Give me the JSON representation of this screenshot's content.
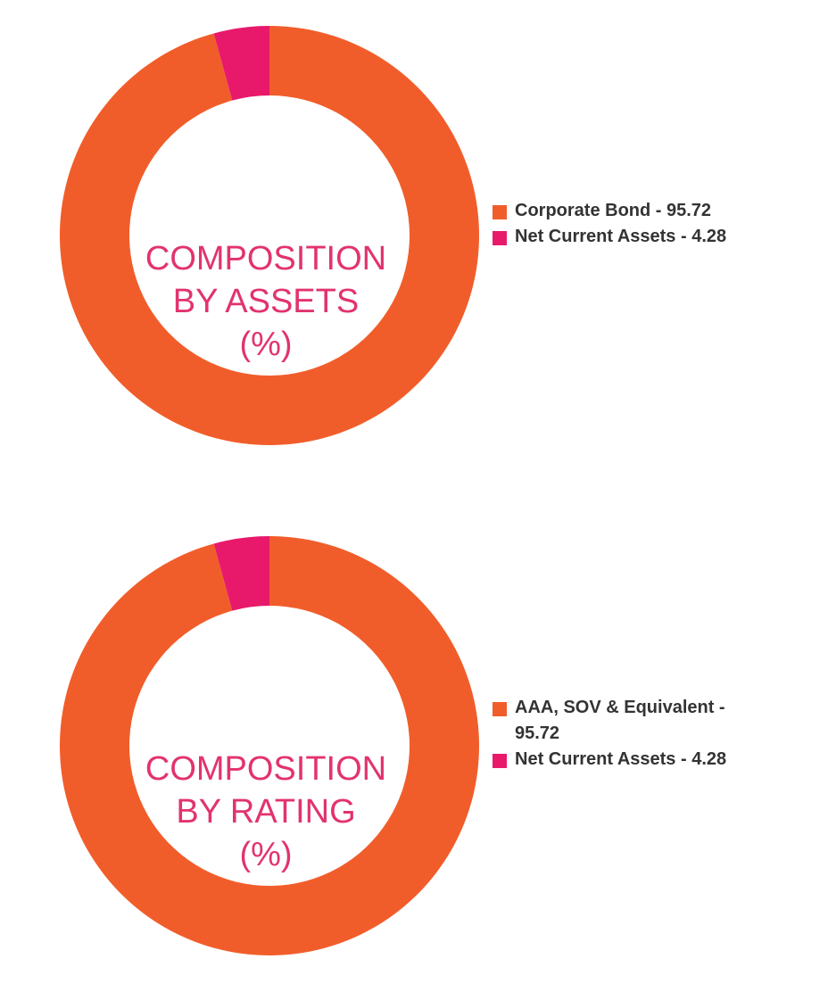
{
  "colors": {
    "orange": "#f15d2a",
    "pink": "#e8196b",
    "label": "#e2336f",
    "text": "#333333"
  },
  "chart_data": [
    {
      "type": "pie",
      "title_lines": [
        "COMPOSITION",
        "BY ASSETS",
        "(%)"
      ],
      "slices": [
        {
          "label": "Corporate Bond",
          "value": 95.72,
          "color": "#f15d2a",
          "legend_text": "Corporate Bond - 95.72"
        },
        {
          "label": "Net Current Assets",
          "value": 4.28,
          "color": "#e8196b",
          "legend_text": "Net Current Assets - 4.28"
        }
      ]
    },
    {
      "type": "pie",
      "title_lines": [
        "COMPOSITION",
        "BY RATING",
        "(%)"
      ],
      "slices": [
        {
          "label": "AAA, SOV & Equivalent",
          "value": 95.72,
          "color": "#f15d2a",
          "legend_text_lines": [
            "AAA, SOV & Equivalent -",
            "95.72"
          ]
        },
        {
          "label": "Net Current Assets",
          "value": 4.28,
          "color": "#e8196b",
          "legend_text": "Net Current Assets - 4.28"
        }
      ]
    }
  ]
}
